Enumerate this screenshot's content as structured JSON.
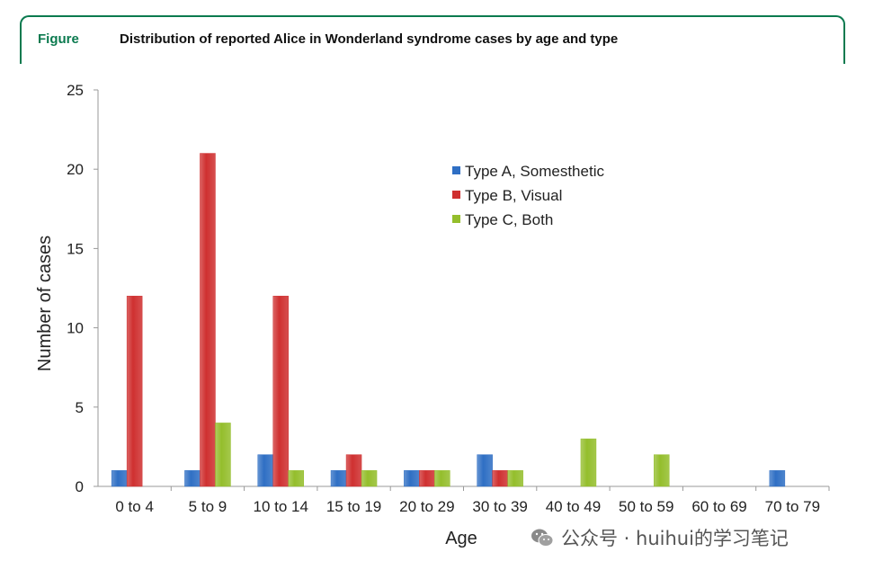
{
  "header": {
    "label": "Figure",
    "title": "Distribution of reported Alice in Wonderland syndrome cases by age and type"
  },
  "watermark": {
    "text": "公众号 · huihui的学习笔记",
    "icon": "wechat-icon"
  },
  "chart_data": {
    "type": "bar",
    "title": "Distribution of reported Alice in Wonderland syndrome cases by age and type",
    "xlabel": "Age",
    "ylabel": "Number of cases",
    "ylim": [
      0,
      25
    ],
    "yticks": [
      0,
      5,
      10,
      15,
      20,
      25
    ],
    "grid": false,
    "legend_position": "top-right",
    "categories": [
      "0 to 4",
      "5 to 9",
      "10 to 14",
      "15 to 19",
      "20 to 29",
      "30 to 39",
      "40 to 49",
      "50 to 59",
      "60 to 69",
      "70 to 79"
    ],
    "series": [
      {
        "name": "Type A, Somesthetic",
        "color": "#2f6fc4",
        "values": [
          1,
          1,
          2,
          1,
          1,
          2,
          0,
          0,
          0,
          1
        ]
      },
      {
        "name": "Type B, Visual",
        "color": "#cf3030",
        "values": [
          12,
          21,
          12,
          2,
          1,
          1,
          0,
          0,
          0,
          0
        ]
      },
      {
        "name": "Type C, Both",
        "color": "#94be2c",
        "values": [
          0,
          4,
          1,
          1,
          1,
          1,
          3,
          2,
          0,
          0
        ]
      }
    ]
  }
}
